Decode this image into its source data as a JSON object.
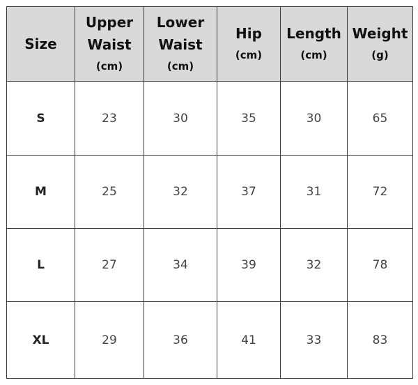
{
  "table": {
    "headers": [
      {
        "main": "Size",
        "unit": ""
      },
      {
        "main": "Upper Waist",
        "unit": "(cm)"
      },
      {
        "main": "Lower Waist",
        "unit": "(cm)"
      },
      {
        "main": "Hip",
        "unit": "(cm)"
      },
      {
        "main": "Length",
        "unit": "(cm)"
      },
      {
        "main": "Weight",
        "unit": "(g)"
      }
    ],
    "rows": [
      [
        "S",
        "23",
        "30",
        "35",
        "30",
        "65"
      ],
      [
        "M",
        "25",
        "32",
        "37",
        "31",
        "72"
      ],
      [
        "L",
        "27",
        "34",
        "39",
        "32",
        "78"
      ],
      [
        "XL",
        "29",
        "36",
        "41",
        "33",
        "83"
      ]
    ]
  },
  "colors": {
    "header_bg": "#d9d9d9",
    "border": "#3a3a3a"
  }
}
